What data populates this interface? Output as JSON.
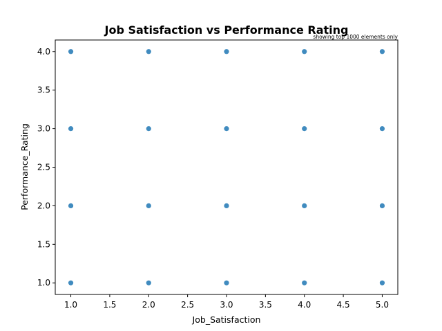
{
  "chart_data": {
    "type": "scatter",
    "title": "Job Satisfaction vs Performance Rating",
    "annotation": "showing top 1000 elements only",
    "xlabel": "Job_Satisfaction",
    "ylabel": "Performance_Rating",
    "xlim": [
      0.8,
      5.2
    ],
    "ylim": [
      0.85,
      4.15
    ],
    "xticks": [
      "1.0",
      "1.5",
      "2.0",
      "2.5",
      "3.0",
      "3.5",
      "4.0",
      "4.5",
      "5.0"
    ],
    "yticks": [
      "1.0",
      "1.5",
      "2.0",
      "2.5",
      "3.0",
      "3.5",
      "4.0"
    ],
    "grid": false,
    "marker_color": "#1f77b4",
    "points": [
      {
        "x": 1,
        "y": 1
      },
      {
        "x": 1,
        "y": 2
      },
      {
        "x": 1,
        "y": 3
      },
      {
        "x": 1,
        "y": 4
      },
      {
        "x": 2,
        "y": 1
      },
      {
        "x": 2,
        "y": 2
      },
      {
        "x": 2,
        "y": 3
      },
      {
        "x": 2,
        "y": 4
      },
      {
        "x": 3,
        "y": 1
      },
      {
        "x": 3,
        "y": 2
      },
      {
        "x": 3,
        "y": 3
      },
      {
        "x": 3,
        "y": 4
      },
      {
        "x": 4,
        "y": 1
      },
      {
        "x": 4,
        "y": 2
      },
      {
        "x": 4,
        "y": 3
      },
      {
        "x": 4,
        "y": 4
      },
      {
        "x": 5,
        "y": 1
      },
      {
        "x": 5,
        "y": 2
      },
      {
        "x": 5,
        "y": 3
      },
      {
        "x": 5,
        "y": 4
      }
    ]
  }
}
